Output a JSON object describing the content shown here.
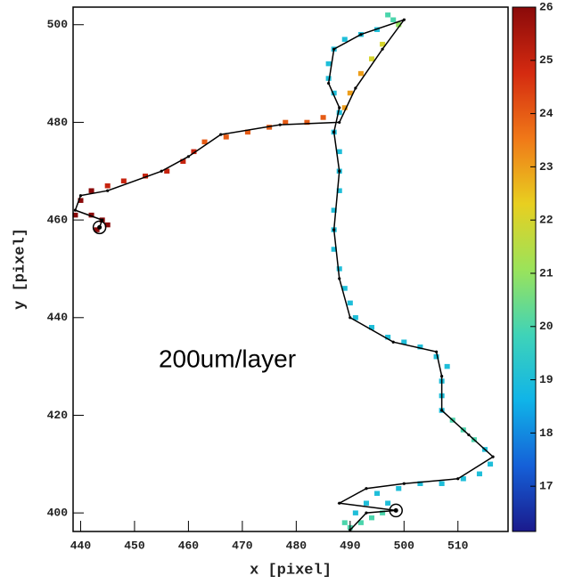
{
  "chart_data": {
    "type": "scatter",
    "x_label": "x [pixel]",
    "y_label": "y [pixel]",
    "annotation": "200um/layer",
    "xlim": [
      438.6,
      519.3
    ],
    "ylim": [
      396.2,
      503.6
    ],
    "zlim": [
      16.15,
      26
    ],
    "xticks": [
      440,
      450,
      460,
      470,
      480,
      490,
      500,
      510
    ],
    "yticks": [
      400,
      420,
      440,
      460,
      480,
      500
    ],
    "zticks": [
      17,
      18,
      19,
      20,
      21,
      22,
      23,
      24,
      25,
      26
    ],
    "colormap": [
      "#1a1a8c",
      "#1560d8",
      "#10b4e8",
      "#3fd3b8",
      "#9be35a",
      "#e8cf20",
      "#f07818",
      "#d42a10",
      "#8a0a0a"
    ],
    "track_color": "#000000",
    "pixels": {
      "x": [
        490,
        492,
        494,
        496,
        491,
        489,
        493,
        497,
        495,
        499,
        503,
        507,
        511,
        514,
        516,
        515,
        513,
        511,
        509,
        507,
        507,
        507,
        508,
        506,
        503,
        500,
        497,
        494,
        491,
        490,
        489,
        488,
        487,
        487,
        487,
        488,
        488,
        488,
        487,
        488,
        487,
        486,
        486,
        487,
        489,
        492,
        495,
        498,
        497,
        499,
        496,
        494,
        492,
        490,
        489,
        485,
        482,
        478,
        475,
        471,
        467,
        463,
        461,
        459,
        456,
        452,
        448,
        445,
        442,
        440,
        439,
        442,
        444,
        445,
        443
      ],
      "y": [
        397,
        398,
        399,
        400,
        400,
        398,
        402,
        402,
        404,
        405,
        406,
        406,
        407,
        408,
        410,
        413,
        415,
        417,
        419,
        421,
        424,
        427,
        430,
        432,
        434,
        435,
        436,
        438,
        440,
        443,
        446,
        450,
        454,
        458,
        462,
        466,
        470,
        474,
        478,
        482,
        486,
        489,
        492,
        495,
        497,
        498,
        499,
        501,
        502,
        500,
        496,
        493,
        490,
        486,
        483,
        481,
        480,
        480,
        479,
        478,
        477,
        476,
        474,
        472,
        470,
        469,
        468,
        467,
        466,
        464,
        461,
        461,
        460,
        459,
        458
      ],
      "z": [
        20,
        20,
        20,
        20,
        19,
        20,
        19,
        19,
        19,
        19,
        19,
        19,
        19,
        19,
        19,
        19,
        20,
        20,
        20,
        19,
        19,
        19,
        19,
        19,
        19,
        19,
        19,
        19,
        19,
        19,
        19,
        19,
        19,
        19,
        19,
        19,
        19,
        19,
        19,
        19,
        19,
        19,
        19,
        19,
        19,
        19,
        19,
        20,
        20,
        21,
        22,
        22,
        23,
        23,
        23,
        24,
        24,
        24,
        24,
        24,
        24,
        24,
        25,
        25,
        25,
        25,
        25,
        25,
        26,
        26,
        26,
        26,
        26,
        26,
        26
      ]
    },
    "track": {
      "x": [
        490,
        493,
        498.5,
        488,
        493,
        500,
        510,
        516.5,
        512,
        507,
        507,
        506,
        498,
        490,
        488,
        487,
        488,
        487,
        488,
        486,
        487,
        492,
        500,
        496,
        491,
        488,
        477,
        466,
        460,
        455,
        445,
        440,
        439,
        444,
        443.5
      ],
      "y": [
        396.5,
        400,
        400.5,
        402,
        405,
        406,
        407,
        411.5,
        416,
        421,
        428,
        433,
        435,
        440,
        448,
        458,
        470,
        478,
        483,
        488,
        495,
        498,
        501,
        495,
        487,
        480,
        479.5,
        477.5,
        473,
        470,
        466,
        465,
        462,
        460,
        458.5
      ]
    },
    "markers": {
      "x": [
        443.5,
        498.5
      ],
      "y": [
        458.5,
        400.5
      ]
    }
  }
}
